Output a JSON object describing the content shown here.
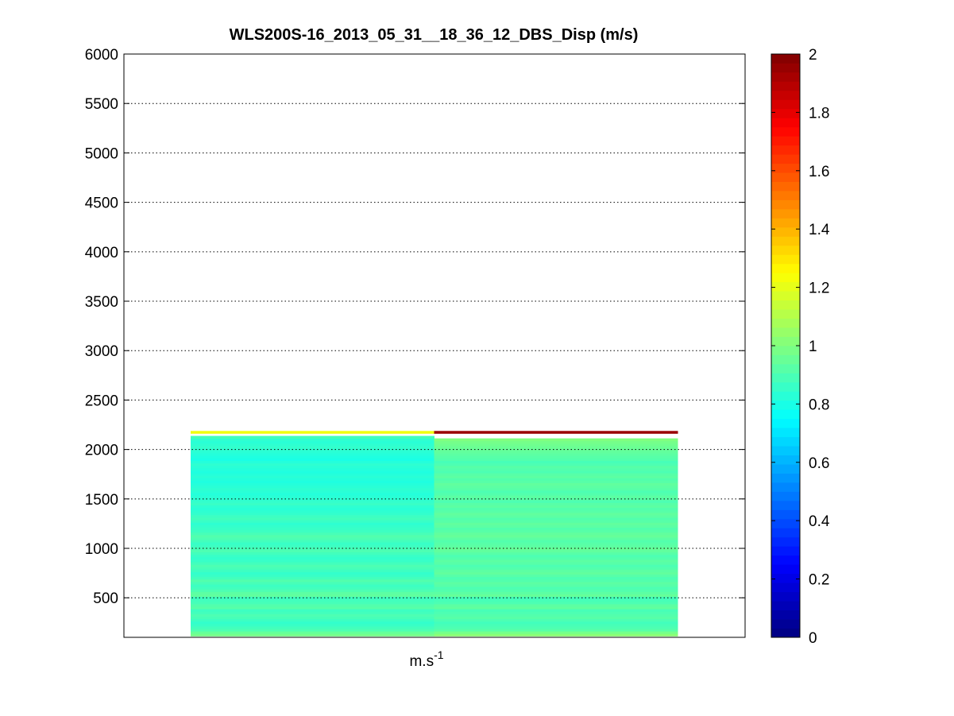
{
  "chart_data": {
    "type": "heatmap",
    "title": "WLS200S-16_2013_05_31__18_36_12_DBS_Disp (m/s)",
    "xlabel_base": "m.s",
    "xlabel_exp": "-1",
    "ylim": [
      100,
      6000
    ],
    "yticks": [
      500,
      1000,
      1500,
      2000,
      2500,
      3000,
      3500,
      4000,
      4500,
      5000,
      5500,
      6000
    ],
    "grid": "y-dotted",
    "colormap": "jet",
    "clim": [
      0,
      2
    ],
    "colorbar_ticks": [
      "0",
      "0.2",
      "0.4",
      "0.6",
      "0.8",
      "1",
      "1.2",
      "1.4",
      "1.6",
      "1.8",
      "2"
    ],
    "colorbar_tick_values": [
      0,
      0.2,
      0.4,
      0.6,
      0.8,
      1.0,
      1.2,
      1.4,
      1.6,
      1.8,
      2.0
    ],
    "columns": 2,
    "altitude_bins_m": [
      125,
      150,
      175,
      200,
      225,
      250,
      275,
      300,
      325,
      350,
      375,
      400,
      425,
      450,
      475,
      500,
      525,
      550,
      575,
      600,
      625,
      650,
      675,
      700,
      725,
      750,
      775,
      800,
      825,
      850,
      875,
      900,
      925,
      950,
      975,
      1000,
      1025,
      1050,
      1075,
      1100,
      1125,
      1150,
      1175,
      1200,
      1225,
      1250,
      1275,
      1300,
      1325,
      1350,
      1375,
      1400,
      1425,
      1450,
      1475,
      1500,
      1525,
      1550,
      1575,
      1600,
      1625,
      1650,
      1675,
      1700,
      1725,
      1750,
      1775,
      1800,
      1825,
      1850,
      1875,
      1900,
      1925,
      1950,
      1975,
      2000,
      2025,
      2050,
      2075,
      2100,
      2125,
      2150,
      2175
    ],
    "series": [
      {
        "values": [
          0.98,
          0.95,
          0.9,
          0.88,
          0.86,
          0.85,
          0.87,
          0.89,
          0.9,
          0.88,
          0.87,
          0.92,
          0.91,
          0.89,
          0.88,
          0.87,
          0.94,
          0.93,
          0.9,
          0.88,
          0.87,
          0.89,
          0.91,
          0.88,
          0.86,
          0.85,
          0.87,
          0.89,
          0.9,
          0.88,
          0.86,
          0.85,
          0.86,
          0.88,
          0.9,
          0.89,
          0.87,
          0.86,
          0.88,
          0.9,
          0.91,
          0.89,
          0.87,
          0.86,
          0.85,
          0.84,
          0.86,
          0.88,
          0.87,
          0.85,
          0.84,
          0.83,
          0.84,
          0.86,
          0.85,
          0.84,
          0.83,
          0.82,
          0.83,
          0.84,
          0.83,
          0.82,
          0.81,
          0.82,
          0.83,
          0.82,
          0.81,
          0.82,
          0.83,
          0.84,
          0.82,
          0.8,
          0.81,
          0.82,
          0.83,
          0.84,
          0.85,
          0.84,
          0.83,
          0.84,
          0.88,
          null,
          1.22
        ]
      },
      {
        "values": [
          1.02,
          0.98,
          0.92,
          0.9,
          0.89,
          0.88,
          0.9,
          0.92,
          0.91,
          0.9,
          0.89,
          0.94,
          0.93,
          0.9,
          0.89,
          0.88,
          0.95,
          0.93,
          0.91,
          0.9,
          0.92,
          0.93,
          0.91,
          0.9,
          0.92,
          0.94,
          0.93,
          0.91,
          0.9,
          0.92,
          0.93,
          0.91,
          0.9,
          0.92,
          0.94,
          0.95,
          0.93,
          0.92,
          0.91,
          0.93,
          0.95,
          0.94,
          0.92,
          0.91,
          0.93,
          0.94,
          0.92,
          0.91,
          0.93,
          0.94,
          0.92,
          0.91,
          0.93,
          0.92,
          0.9,
          0.92,
          0.93,
          0.91,
          0.9,
          0.92,
          0.93,
          0.94,
          0.92,
          0.91,
          0.93,
          0.92,
          0.9,
          0.91,
          0.92,
          0.9,
          0.89,
          0.91,
          0.92,
          0.93,
          0.94,
          0.95,
          0.96,
          0.97,
          0.98,
          1.0,
          null,
          null,
          1.95
        ]
      }
    ]
  }
}
